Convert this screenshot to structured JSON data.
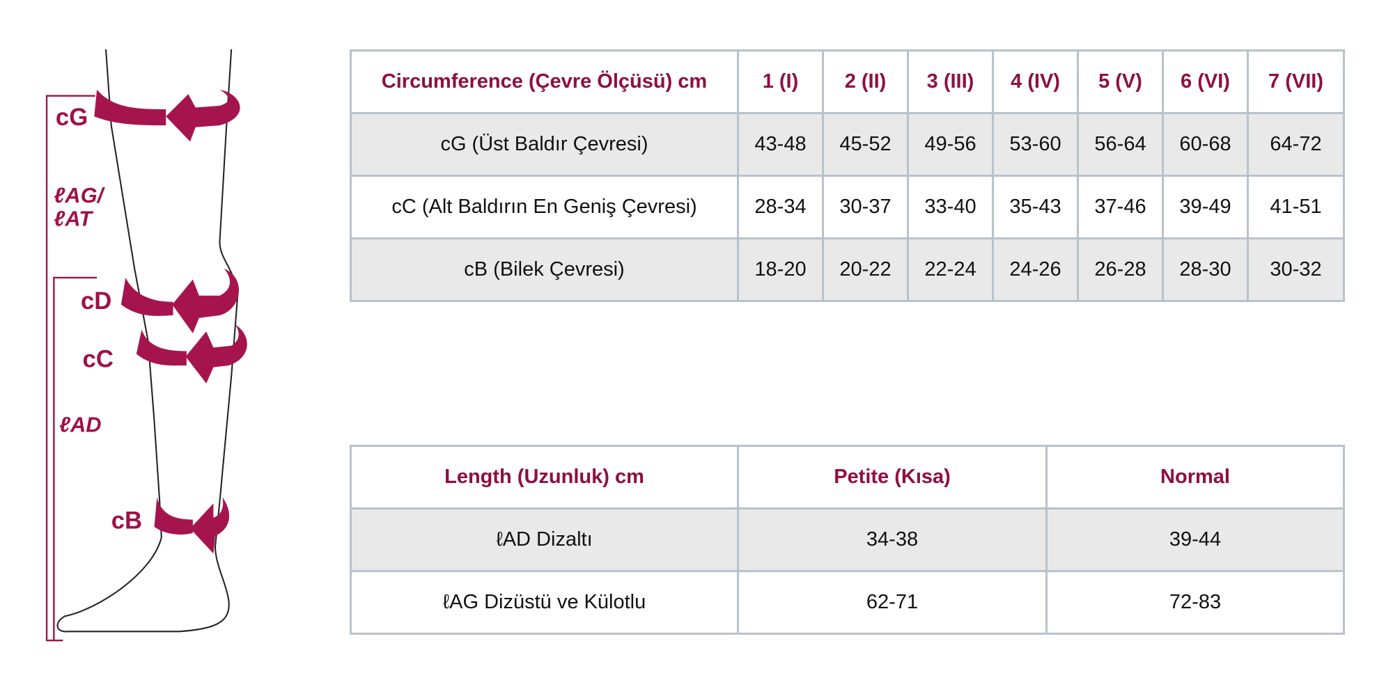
{
  "diagram": {
    "labels": [
      "cG",
      "ℓAG/",
      "ℓAT",
      "cD",
      "cC",
      "ℓAD",
      "cB"
    ]
  },
  "circumference_table": {
    "header": [
      "Circumference (Çevre Ölçüsü) cm",
      "1 (I)",
      "2 (II)",
      "3 (III)",
      "4 (IV)",
      "5 (V)",
      "6 (VI)",
      "7 (VII)"
    ],
    "rows": [
      [
        "cG (Üst Baldır Çevresi)",
        "43-48",
        "45-52",
        "49-56",
        "53-60",
        "56-64",
        "60-68",
        "64-72"
      ],
      [
        "cC (Alt Baldırın En Geniş Çevresi)",
        "28-34",
        "30-37",
        "33-40",
        "35-43",
        "37-46",
        "39-49",
        "41-51"
      ],
      [
        "cB (Bilek Çevresi)",
        "18-20",
        "20-22",
        "22-24",
        "24-26",
        "26-28",
        "28-30",
        "30-32"
      ]
    ]
  },
  "length_table": {
    "header": [
      "Length (Uzunluk) cm",
      "Petite (Kısa)",
      "Normal"
    ],
    "rows": [
      [
        "ℓAD Dizaltı",
        "34-38",
        "39-44"
      ],
      [
        "ℓAG Dizüstü ve Külotlu",
        "62-71",
        "72-83"
      ]
    ]
  }
}
